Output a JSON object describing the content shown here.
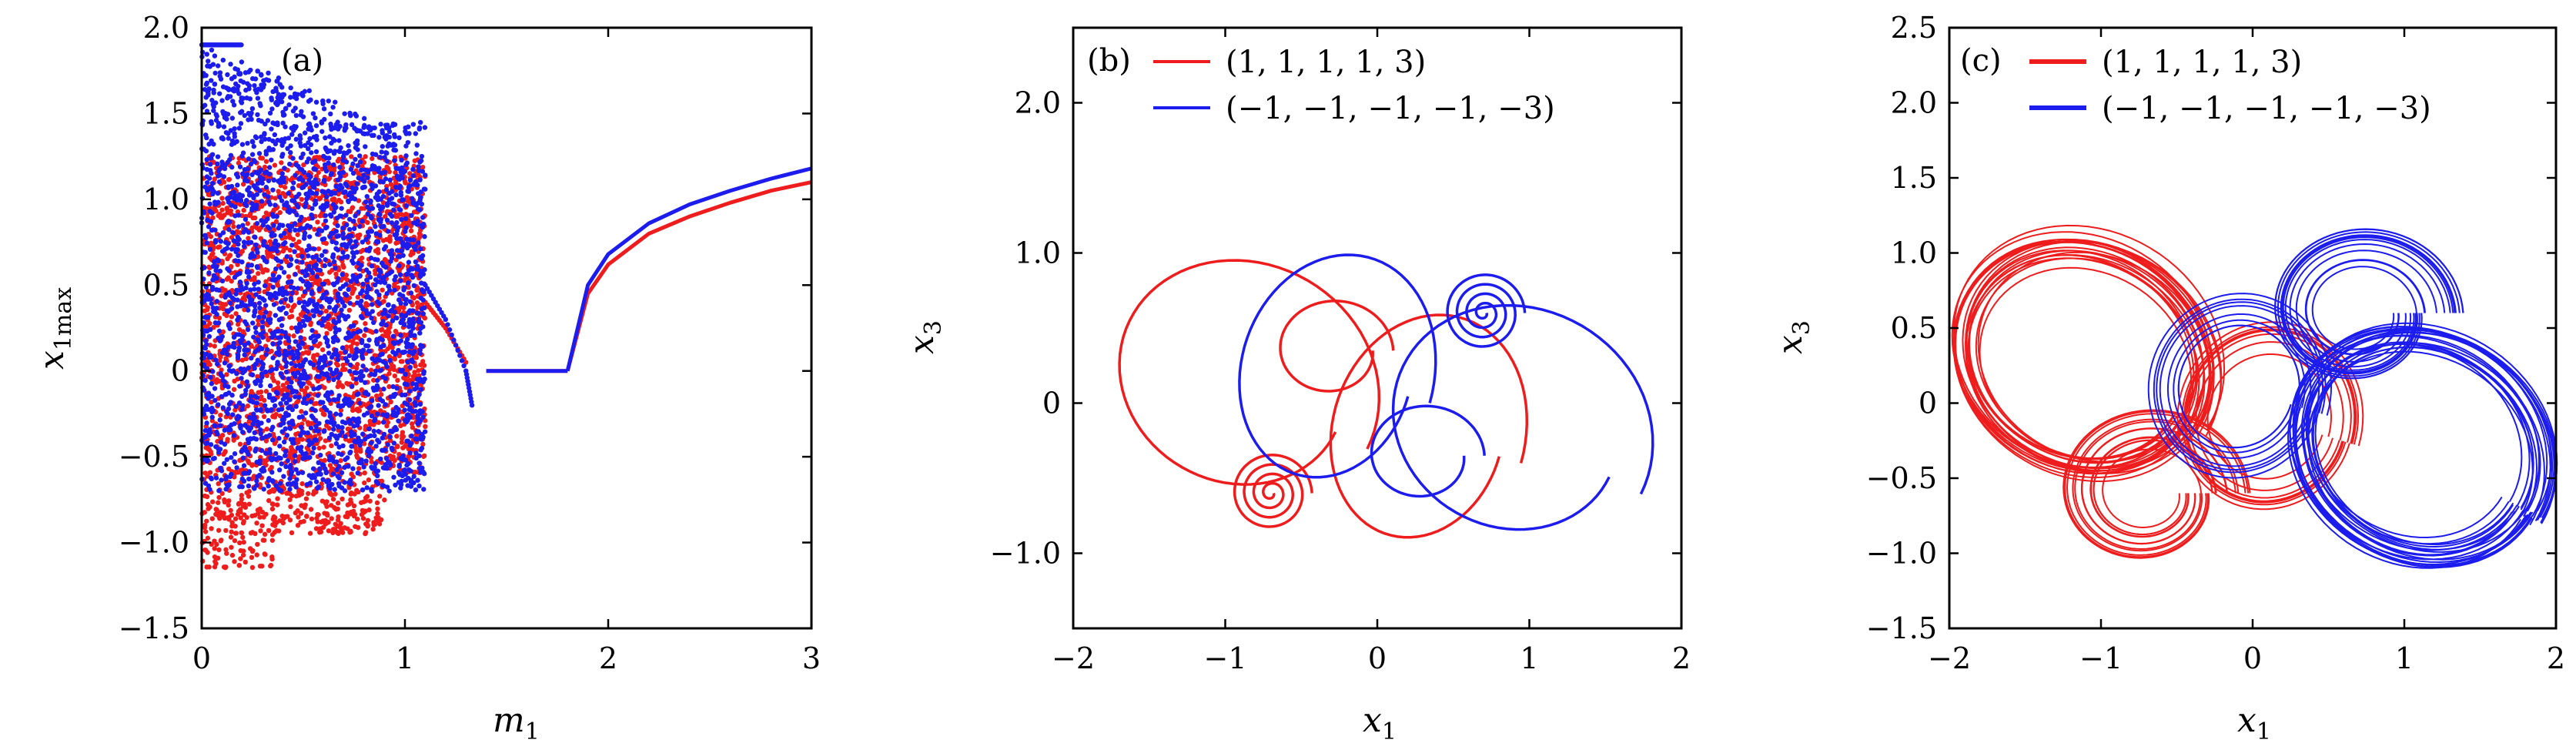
{
  "chart_data": [
    {
      "type": "scatter",
      "panel": "(a)",
      "xlabel": "m",
      "xlabel_sub": "1",
      "ylabel": "x",
      "ylabel_sub": "1max",
      "xlim": [
        0,
        3
      ],
      "ylim": [
        -1.5,
        2.0
      ],
      "xticks": [
        0,
        1,
        2,
        3
      ],
      "xtick_labels": [
        "0",
        "1",
        "2",
        "3"
      ],
      "yticks": [
        -1.5,
        -1.0,
        -0.5,
        0,
        0.5,
        1.0,
        1.5,
        2.0
      ],
      "ytick_labels": [
        "−1.5",
        "−1.0",
        "−0.5",
        "0",
        "0.5",
        "1.0",
        "1.5",
        "2.0"
      ],
      "series": [
        {
          "color": "#ee1c1c",
          "chaotic_band": {
            "m_range": [
              0.0,
              1.1
            ],
            "x_range": [
              -1.2,
              1.3
            ]
          },
          "fixed_points": [
            [
              1.4,
              0.0
            ],
            [
              1.8,
              0.0
            ]
          ],
          "branch_points": [
            [
              1.8,
              0.0
            ],
            [
              1.9,
              0.45
            ],
            [
              2.0,
              0.62
            ],
            [
              2.2,
              0.8
            ],
            [
              2.4,
              0.9
            ],
            [
              2.6,
              0.98
            ],
            [
              2.8,
              1.05
            ],
            [
              3.0,
              1.1
            ]
          ],
          "tail_points": [
            [
              1.1,
              0.4
            ],
            [
              1.2,
              0.25
            ],
            [
              1.3,
              0.05
            ]
          ]
        },
        {
          "color": "#1c1cee",
          "chaotic_band": {
            "m_range": [
              0.0,
              1.1
            ],
            "x_range": [
              -0.7,
              1.9
            ]
          },
          "fixed_points": [
            [
              1.4,
              0.0
            ],
            [
              1.8,
              0.0
            ]
          ],
          "branch_points": [
            [
              1.8,
              0.0
            ],
            [
              1.9,
              0.5
            ],
            [
              2.0,
              0.68
            ],
            [
              2.2,
              0.86
            ],
            [
              2.4,
              0.97
            ],
            [
              2.6,
              1.05
            ],
            [
              2.8,
              1.12
            ],
            [
              3.0,
              1.18
            ]
          ],
          "tail_points": [
            [
              1.1,
              0.5
            ],
            [
              1.2,
              0.3
            ],
            [
              1.3,
              0.0
            ],
            [
              1.33,
              -0.2
            ]
          ]
        }
      ]
    },
    {
      "type": "line",
      "panel": "(b)",
      "xlabel": "x",
      "xlabel_sub": "1",
      "ylabel": "x",
      "ylabel_sub": "3",
      "xlim": [
        -2,
        2
      ],
      "ylim": [
        -1.5,
        2.5
      ],
      "xticks": [
        -2,
        -1,
        0,
        1,
        2
      ],
      "xtick_labels": [
        "−2",
        "−1",
        "0",
        "1",
        "2"
      ],
      "yticks": [
        -1.0,
        0,
        1.0,
        2.0
      ],
      "ytick_labels": [
        "−1.0",
        "0",
        "1.0",
        "2.0"
      ],
      "legend_location": "top-left",
      "series": [
        {
          "name": "(1, 1, 1, 1, 3)",
          "color": "#ee1c1c",
          "center_point": [
            -0.7,
            -0.6
          ]
        },
        {
          "name": "(−1, −1, −1, −1, −3)",
          "color": "#1c1cee",
          "center_point": [
            0.7,
            0.6
          ]
        }
      ]
    },
    {
      "type": "line",
      "panel": "(c)",
      "xlabel": "x",
      "xlabel_sub": "1",
      "ylabel": "x",
      "ylabel_sub": "3",
      "xlim": [
        -2,
        2
      ],
      "ylim": [
        -1.5,
        2.5
      ],
      "xticks": [
        -2,
        -1,
        0,
        1,
        2
      ],
      "xtick_labels": [
        "−2",
        "−1",
        "0",
        "1",
        "2"
      ],
      "yticks": [
        -1.5,
        -1.0,
        -0.5,
        0,
        0.5,
        1.0,
        1.5,
        2.0,
        2.5
      ],
      "ytick_labels": [
        "−1.5",
        "−1.0",
        "−0.5",
        "0",
        "0.5",
        "1.0",
        "1.5",
        "2.0",
        "2.5"
      ],
      "legend_location": "top-left",
      "series": [
        {
          "name": "(1, 1, 1, 1, 3)",
          "color": "#ee1c1c",
          "center_point": [
            -0.7,
            -0.6
          ]
        },
        {
          "name": "(−1, −1, −1, −1, −3)",
          "color": "#1c1cee",
          "center_point": [
            0.7,
            0.6
          ]
        }
      ]
    }
  ]
}
